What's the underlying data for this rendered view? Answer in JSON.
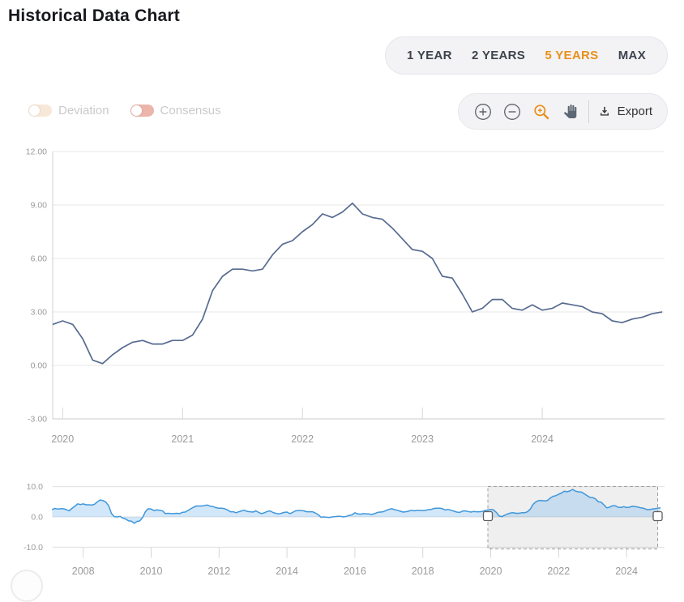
{
  "page": {
    "title": "Historical Data Chart",
    "background": "#ffffff"
  },
  "range_selector": {
    "options": [
      {
        "label": "1 YEAR",
        "active": false
      },
      {
        "label": "2 YEARS",
        "active": false
      },
      {
        "label": "5 YEARS",
        "active": true
      },
      {
        "label": "MAX",
        "active": false
      }
    ],
    "active_color": "#e8901a",
    "inactive_color": "#3d434e"
  },
  "series_toggles": [
    {
      "label": "Deviation",
      "state": "off",
      "track_color": "#f8e8d8"
    },
    {
      "label": "Consensus",
      "state": "off",
      "track_color": "#ecb5ab"
    }
  ],
  "toolbar": {
    "tools": [
      {
        "name": "zoom-in",
        "icon": "circle-plus-icon",
        "active": false
      },
      {
        "name": "zoom-out",
        "icon": "circle-minus-icon",
        "active": false
      },
      {
        "name": "zoom-selection",
        "icon": "magnifier-plus-icon",
        "active": true
      },
      {
        "name": "pan",
        "icon": "hand-icon",
        "active": false
      }
    ],
    "active_color": "#e8901a",
    "default_color": "#5f6368",
    "export_label": "Export"
  },
  "chart_data": [
    {
      "id": "main",
      "type": "line",
      "title": "",
      "x_unit": "year-month",
      "x_start": 2019.9167,
      "x_step": 0.083333,
      "xlim": [
        2019.9167,
        5.1033
      ],
      "xticks": [
        2020,
        2021,
        2022,
        2023,
        2024
      ],
      "ylim": [
        -3,
        12
      ],
      "yticks": [
        -3,
        0,
        3,
        6,
        9,
        12
      ],
      "ytick_labels": [
        "-3.00",
        "0.00",
        "3.00",
        "6.00",
        "9.00",
        "12.00"
      ],
      "grid": true,
      "line_color": "#566b90",
      "values": [
        2.3,
        2.5,
        2.3,
        1.5,
        0.3,
        0.1,
        0.6,
        1.0,
        1.3,
        1.4,
        1.2,
        1.2,
        1.4,
        1.4,
        1.7,
        2.6,
        4.2,
        5.0,
        5.4,
        5.4,
        5.3,
        5.4,
        6.2,
        6.8,
        7.0,
        7.5,
        7.9,
        8.5,
        8.3,
        8.6,
        9.1,
        8.5,
        8.3,
        8.2,
        7.7,
        7.1,
        6.5,
        6.4,
        6.0,
        5.0,
        4.9,
        4.0,
        3.0,
        3.2,
        3.7,
        3.7,
        3.2,
        3.1,
        3.4,
        3.1,
        3.2,
        3.5,
        3.4,
        3.3,
        3.0,
        2.9,
        2.5,
        2.4,
        2.6,
        2.7,
        2.9,
        3.0
      ]
    },
    {
      "id": "navigator",
      "type": "area",
      "title": "",
      "x_unit": "year-month",
      "x_start": 2007.0833,
      "x_step": 0.083333,
      "xlim": [
        2007.1,
        18.02
      ],
      "xticks": [
        2008,
        2010,
        2012,
        2014,
        2016,
        2018,
        2020,
        2022,
        2024
      ],
      "ylim": [
        -10.7,
        10.7
      ],
      "yticks": [
        -10,
        0,
        10
      ],
      "ytick_labels": [
        "-10.0",
        "0.0",
        "10.0"
      ],
      "grid": true,
      "line_color": "#3f97db",
      "fill_color": "rgba(105,175,235,0.30)",
      "selection": {
        "start": 2019.917,
        "end": 2024.917,
        "fill": "rgba(120,120,120,0.12)",
        "border": "#9f9f9f"
      },
      "values": [
        2.4,
        2.8,
        2.6,
        2.7,
        2.7,
        2.4,
        2.0,
        2.8,
        3.5,
        4.3,
        4.1,
        4.3,
        4.0,
        4.0,
        3.9,
        4.2,
        5.0,
        5.6,
        5.4,
        4.9,
        3.7,
        1.1,
        0.1,
        0.0,
        0.2,
        -0.4,
        -0.7,
        -1.3,
        -1.4,
        -2.1,
        -1.5,
        -1.3,
        -0.2,
        1.8,
        2.7,
        2.6,
        2.1,
        2.3,
        2.2,
        2.0,
        1.1,
        1.2,
        1.1,
        1.1,
        1.2,
        1.1,
        1.5,
        1.6,
        2.1,
        2.7,
        3.2,
        3.6,
        3.6,
        3.6,
        3.8,
        3.9,
        3.5,
        3.4,
        3.0,
        2.9,
        2.9,
        2.7,
        2.3,
        1.7,
        1.7,
        1.4,
        1.7,
        2.0,
        2.2,
        1.8,
        1.7,
        1.6,
        2.0,
        1.5,
        1.1,
        1.4,
        1.8,
        2.0,
        1.5,
        1.2,
        1.0,
        1.2,
        1.5,
        1.6,
        1.1,
        1.5,
        2.0,
        2.1,
        2.1,
        2.0,
        1.7,
        1.7,
        1.7,
        1.3,
        0.8,
        -0.1,
        0.0,
        -0.1,
        -0.2,
        0.0,
        0.1,
        0.2,
        0.2,
        0.0,
        0.2,
        0.5,
        0.7,
        1.4,
        1.0,
        0.9,
        1.1,
        1.0,
        1.0,
        0.8,
        1.1,
        1.5,
        1.6,
        1.7,
        2.1,
        2.5,
        2.7,
        2.4,
        2.2,
        1.9,
        1.6,
        1.7,
        1.9,
        2.2,
        2.0,
        2.2,
        2.1,
        2.1,
        2.2,
        2.4,
        2.5,
        2.8,
        2.9,
        2.9,
        2.7,
        2.3,
        2.5,
        2.2,
        1.9,
        1.6,
        1.5,
        1.9,
        2.0,
        1.8,
        1.6,
        1.8,
        1.7,
        1.7,
        1.8,
        2.1,
        2.3,
        2.5,
        2.3,
        1.5,
        0.3,
        0.1,
        0.6,
        1.0,
        1.3,
        1.4,
        1.2,
        1.2,
        1.4,
        1.4,
        1.7,
        2.6,
        4.2,
        5.0,
        5.4,
        5.4,
        5.3,
        5.4,
        6.2,
        6.8,
        7.0,
        7.5,
        7.9,
        8.5,
        8.3,
        8.6,
        9.1,
        8.5,
        8.3,
        8.2,
        7.7,
        7.1,
        6.5,
        6.4,
        6.0,
        5.0,
        4.9,
        4.0,
        3.0,
        3.2,
        3.7,
        3.7,
        3.2,
        3.1,
        3.4,
        3.1,
        3.2,
        3.5,
        3.4,
        3.3,
        3.0,
        2.9,
        2.5,
        2.4,
        2.6,
        2.7,
        2.9,
        3.0
      ]
    }
  ]
}
